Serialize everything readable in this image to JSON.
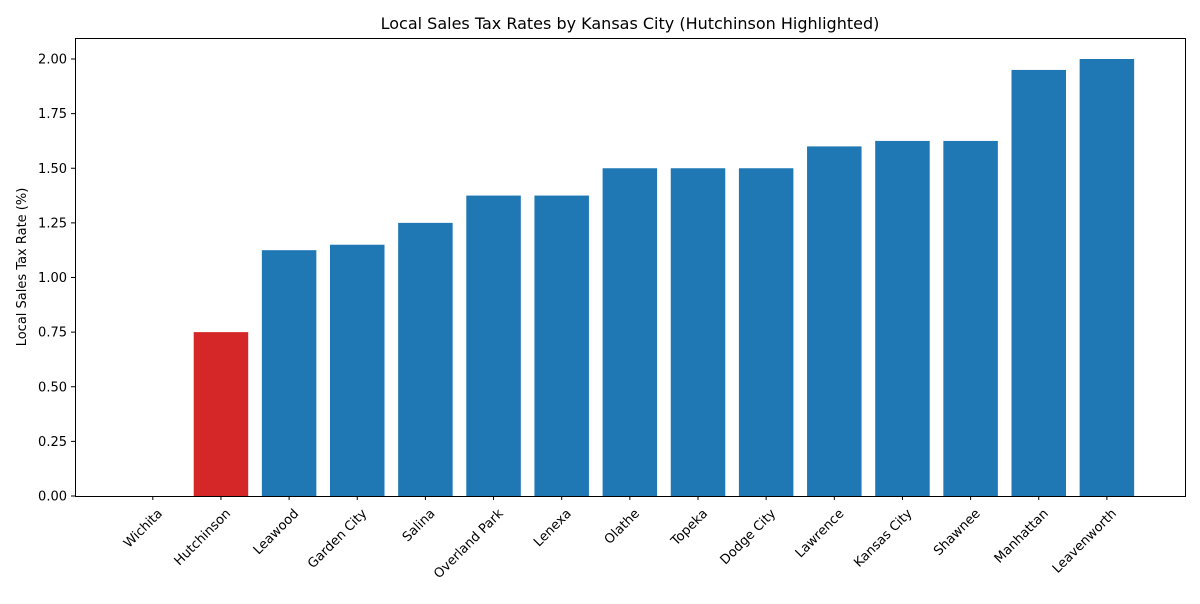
{
  "chart_data": {
    "type": "bar",
    "title": "Local Sales Tax Rates by Kansas City (Hutchinson Highlighted)",
    "xlabel": "",
    "ylabel": "Local Sales Tax Rate (%)",
    "ylim": [
      0,
      2.1
    ],
    "yticks": [
      "0.00",
      "0.25",
      "0.50",
      "0.75",
      "1.00",
      "1.25",
      "1.50",
      "1.75",
      "2.00"
    ],
    "grid": false,
    "categories": [
      "Wichita",
      "Hutchinson",
      "Leawood",
      "Garden City",
      "Salina",
      "Overland Park",
      "Lenexa",
      "Olathe",
      "Topeka",
      "Dodge City",
      "Lawrence",
      "Kansas City",
      "Shawnee",
      "Manhattan",
      "Leavenworth"
    ],
    "values": [
      0,
      0.75,
      1.125,
      1.15,
      1.25,
      1.375,
      1.375,
      1.5,
      1.5,
      1.5,
      1.6,
      1.625,
      1.625,
      1.95,
      2.0
    ],
    "highlight": "Hutchinson",
    "colors": {
      "default": "#1f77b4",
      "highlight": "#d62728"
    }
  }
}
